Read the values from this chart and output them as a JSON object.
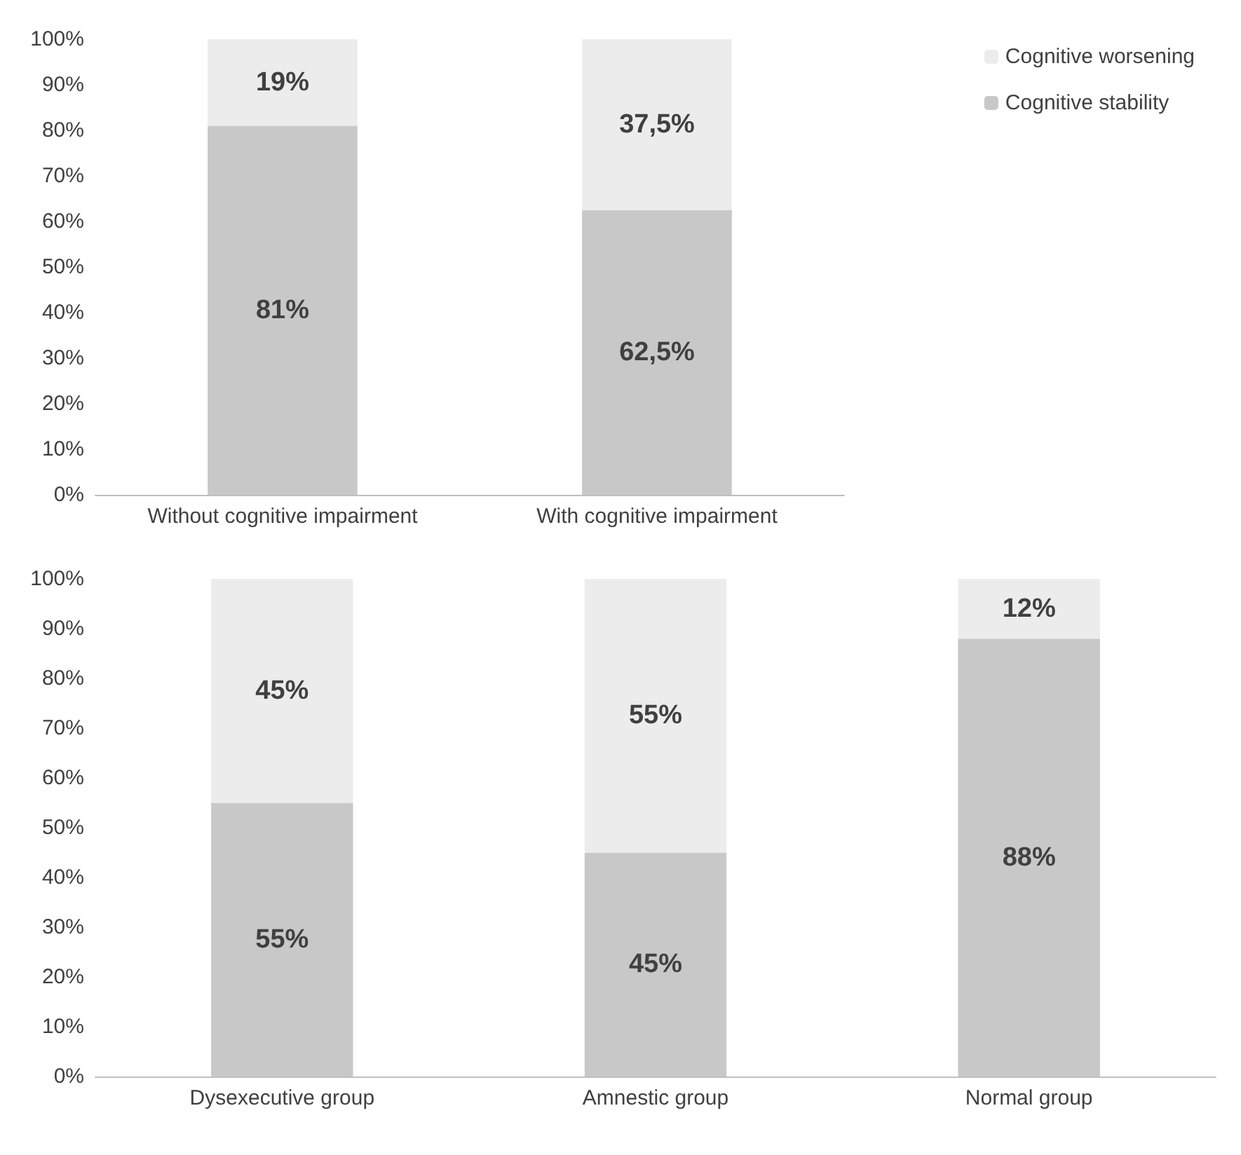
{
  "chart_data": [
    {
      "type": "bar",
      "stacked": true,
      "categories": [
        "Without cognitive impairment",
        "With cognitive impairment"
      ],
      "series": [
        {
          "name": "Cognitive stability",
          "color": "#c8c8c8",
          "values": [
            81,
            62.5
          ],
          "value_labels": [
            "81%",
            "62,5%"
          ]
        },
        {
          "name": "Cognitive worsening",
          "color": "#ececec",
          "values": [
            19,
            37.5
          ],
          "value_labels": [
            "19%",
            "37,5%"
          ]
        }
      ],
      "ylim": [
        0,
        100
      ],
      "yticks": [
        {
          "value": 0,
          "label": "0%"
        },
        {
          "value": 10,
          "label": "10%"
        },
        {
          "value": 20,
          "label": "20%"
        },
        {
          "value": 30,
          "label": "30%"
        },
        {
          "value": 40,
          "label": "40%"
        },
        {
          "value": 50,
          "label": "50%"
        },
        {
          "value": 60,
          "label": "60%"
        },
        {
          "value": 70,
          "label": "70%"
        },
        {
          "value": 80,
          "label": "80%"
        },
        {
          "value": 90,
          "label": "90%"
        },
        {
          "value": 100,
          "label": "100%"
        }
      ],
      "grid": false,
      "legend": "top right"
    },
    {
      "type": "bar",
      "stacked": true,
      "categories": [
        "Dysexecutive group",
        "Amnestic group",
        "Normal group"
      ],
      "series": [
        {
          "color": "#c8c8c8",
          "values": [
            55,
            45,
            88
          ],
          "value_labels": [
            "55%",
            "45%",
            "88%"
          ]
        },
        {
          "color": "#ececec",
          "values": [
            45,
            55,
            12
          ],
          "value_labels": [
            "45%",
            "55%",
            "12%"
          ]
        }
      ],
      "ylim": [
        0,
        100
      ],
      "yticks": [
        {
          "value": 0,
          "label": "0%"
        },
        {
          "value": 10,
          "label": "10%"
        },
        {
          "value": 20,
          "label": "20%"
        },
        {
          "value": 30,
          "label": "30%"
        },
        {
          "value": 40,
          "label": "40%"
        },
        {
          "value": 50,
          "label": "50%"
        },
        {
          "value": 60,
          "label": "60%"
        },
        {
          "value": 70,
          "label": "70%"
        },
        {
          "value": 80,
          "label": "80%"
        },
        {
          "value": 90,
          "label": "90%"
        },
        {
          "value": 100,
          "label": "100%"
        }
      ],
      "grid": false,
      "legend": false
    }
  ]
}
